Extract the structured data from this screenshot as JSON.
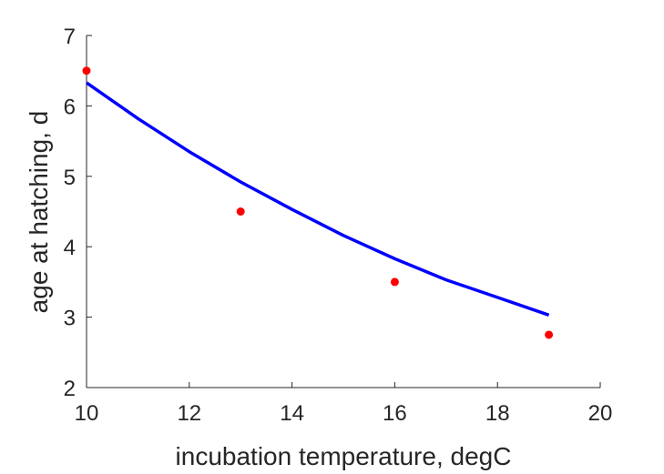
{
  "chart_data": {
    "type": "scatter",
    "xlabel": "incubation temperature, degC",
    "ylabel": "age at hatching, d",
    "xlim": [
      10,
      20
    ],
    "ylim": [
      2,
      7
    ],
    "x_ticks": [
      "10",
      "12",
      "14",
      "16",
      "18",
      "20"
    ],
    "y_ticks": [
      "2",
      "3",
      "4",
      "5",
      "6",
      "7"
    ],
    "grid": false,
    "legend": false,
    "series": [
      {
        "kind": "points",
        "color": "#ff0000",
        "x": [
          10,
          13,
          16,
          19
        ],
        "y": [
          6.5,
          4.5,
          3.5,
          2.75
        ]
      },
      {
        "kind": "line",
        "color": "#0000ff",
        "x": [
          10,
          11,
          12,
          13,
          14,
          15,
          16,
          17,
          18,
          19
        ],
        "y": [
          6.33,
          5.82,
          5.35,
          4.92,
          4.53,
          4.16,
          3.83,
          3.53,
          3.28,
          3.03
        ]
      }
    ]
  }
}
